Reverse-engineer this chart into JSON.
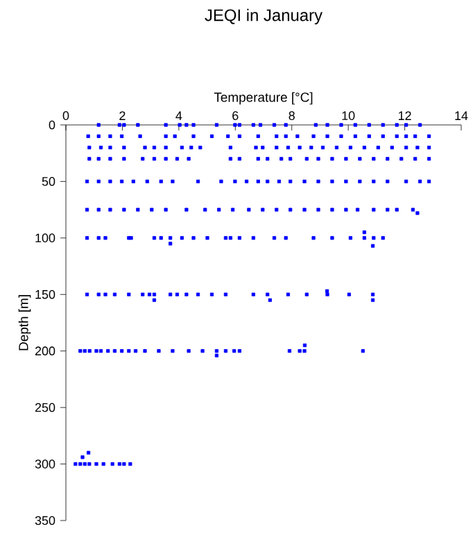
{
  "chart_data": {
    "type": "scatter",
    "title": "JEQI in January",
    "xlabel": "Temperature [°C]",
    "ylabel": "Depth [m]",
    "xlim": [
      0,
      14
    ],
    "ylim": [
      350,
      0
    ],
    "xticks": [
      0,
      2,
      4,
      6,
      8,
      10,
      12,
      14
    ],
    "yticks": [
      0,
      50,
      100,
      150,
      200,
      250,
      300,
      350
    ],
    "marker": "square",
    "series": [
      {
        "color": "#0000ff",
        "x": [
          1.16,
          1.9,
          2.06,
          2.55,
          3.54,
          4.03,
          4.27,
          4.52,
          5.34,
          5.99,
          6.15,
          6.64,
          6.89,
          7.38,
          7.79,
          8.85,
          9.26,
          9.75,
          10.25,
          10.74,
          11.23,
          11.72,
          12.05,
          12.54,
          0.79,
          1.16,
          1.57,
          1.98,
          2.63,
          3.54,
          3.86,
          4.52,
          5.17,
          5.74,
          6.15,
          6.81,
          7.46,
          7.79,
          8.2,
          8.77,
          9.26,
          9.75,
          10.25,
          10.74,
          11.23,
          11.72,
          12.05,
          12.37,
          12.86,
          0.83,
          1.24,
          1.57,
          2.06,
          2.8,
          3.13,
          3.54,
          4.11,
          4.44,
          4.76,
          5.83,
          6.73,
          6.97,
          7.46,
          7.87,
          8.28,
          8.69,
          9.1,
          9.59,
          10.08,
          10.57,
          11.06,
          11.55,
          12.05,
          12.45,
          12.86,
          0.83,
          1.16,
          1.57,
          2.06,
          2.72,
          3.13,
          3.54,
          3.94,
          4.35,
          5.83,
          6.15,
          6.81,
          7.14,
          7.63,
          7.95,
          8.53,
          8.94,
          9.43,
          9.92,
          10.41,
          10.9,
          11.39,
          11.88,
          12.37,
          12.86,
          0.75,
          1.16,
          1.57,
          1.98,
          2.39,
          2.88,
          3.37,
          3.78,
          4.68,
          5.5,
          5.99,
          6.4,
          6.81,
          7.14,
          7.55,
          7.95,
          8.45,
          8.94,
          9.43,
          9.92,
          10.41,
          10.9,
          11.39,
          12.05,
          12.54,
          12.86,
          0.75,
          1.16,
          1.57,
          2.06,
          2.55,
          3.04,
          3.54,
          4.27,
          4.93,
          5.42,
          5.91,
          6.48,
          6.97,
          7.46,
          7.95,
          8.45,
          8.94,
          9.43,
          9.92,
          10.33,
          10.9,
          11.39,
          11.72,
          12.29,
          12.45,
          0.75,
          1.16,
          1.4,
          2.23,
          2.31,
          3.13,
          3.37,
          3.7,
          4.11,
          4.52,
          5.01,
          5.66,
          5.83,
          6.15,
          6.64,
          7.38,
          7.79,
          8.77,
          9.43,
          10.08,
          10.57,
          10.9,
          11.23,
          10.57,
          10.87,
          3.7,
          0.75,
          1.16,
          1.4,
          1.73,
          2.23,
          2.72,
          2.96,
          3.13,
          3.7,
          3.94,
          4.27,
          4.68,
          5.17,
          5.66,
          6.64,
          7.14,
          7.87,
          8.53,
          9.26,
          10.03,
          10.87,
          9.25,
          7.23,
          10.87,
          3.13,
          0.51,
          0.67,
          0.84,
          1.08,
          1.24,
          1.49,
          1.73,
          1.98,
          2.23,
          2.47,
          2.8,
          3.29,
          3.78,
          4.35,
          4.84,
          5.34,
          5.66,
          5.96,
          6.15,
          7.92,
          8.28,
          8.45,
          10.52,
          8.46,
          5.34,
          0.34,
          0.51,
          0.67,
          0.83,
          1.08,
          1.33,
          1.65,
          1.9,
          2.06,
          2.28,
          0.59,
          0.8
        ],
        "values": [
          0,
          0,
          0,
          0,
          0,
          0,
          0,
          0,
          0,
          0,
          0,
          0,
          0,
          0,
          0,
          0,
          0,
          0,
          0,
          0,
          0,
          0,
          0,
          0,
          10,
          10,
          10,
          10,
          10,
          10,
          10,
          10,
          10,
          10,
          10,
          10,
          10,
          10,
          10,
          10,
          10,
          10,
          10,
          10,
          10,
          10,
          10,
          10,
          10,
          20,
          20,
          20,
          20,
          20,
          20,
          20,
          20,
          20,
          20,
          20,
          20,
          20,
          20,
          20,
          20,
          20,
          20,
          20,
          20,
          20,
          20,
          20,
          20,
          20,
          20,
          30,
          30,
          30,
          30,
          30,
          30,
          30,
          30,
          30,
          30,
          30,
          30,
          30,
          30,
          30,
          30,
          30,
          30,
          30,
          30,
          30,
          30,
          30,
          30,
          30,
          50,
          50,
          50,
          50,
          50,
          50,
          50,
          50,
          50,
          50,
          50,
          50,
          50,
          50,
          50,
          50,
          50,
          50,
          50,
          50,
          50,
          50,
          50,
          50,
          50,
          50,
          75,
          75,
          75,
          75,
          75,
          75,
          75,
          75,
          75,
          75,
          75,
          75,
          75,
          75,
          75,
          75,
          75,
          75,
          75,
          75,
          75,
          75,
          75,
          75,
          78,
          100,
          100,
          100,
          100,
          100,
          100,
          100,
          100,
          100,
          100,
          100,
          100,
          100,
          100,
          100,
          100,
          100,
          100,
          100,
          100,
          100,
          100,
          100,
          95,
          107,
          105,
          150,
          150,
          150,
          150,
          150,
          150,
          150,
          150,
          150,
          150,
          150,
          150,
          150,
          150,
          150,
          150,
          150,
          150,
          150,
          150,
          150,
          147,
          155,
          155,
          155,
          200,
          200,
          200,
          200,
          200,
          200,
          200,
          200,
          200,
          200,
          200,
          200,
          200,
          200,
          200,
          200,
          200,
          200,
          200,
          200,
          200,
          200,
          200,
          195,
          204,
          300,
          300,
          300,
          300,
          300,
          300,
          300,
          300,
          300,
          300,
          294,
          290
        ]
      }
    ]
  }
}
